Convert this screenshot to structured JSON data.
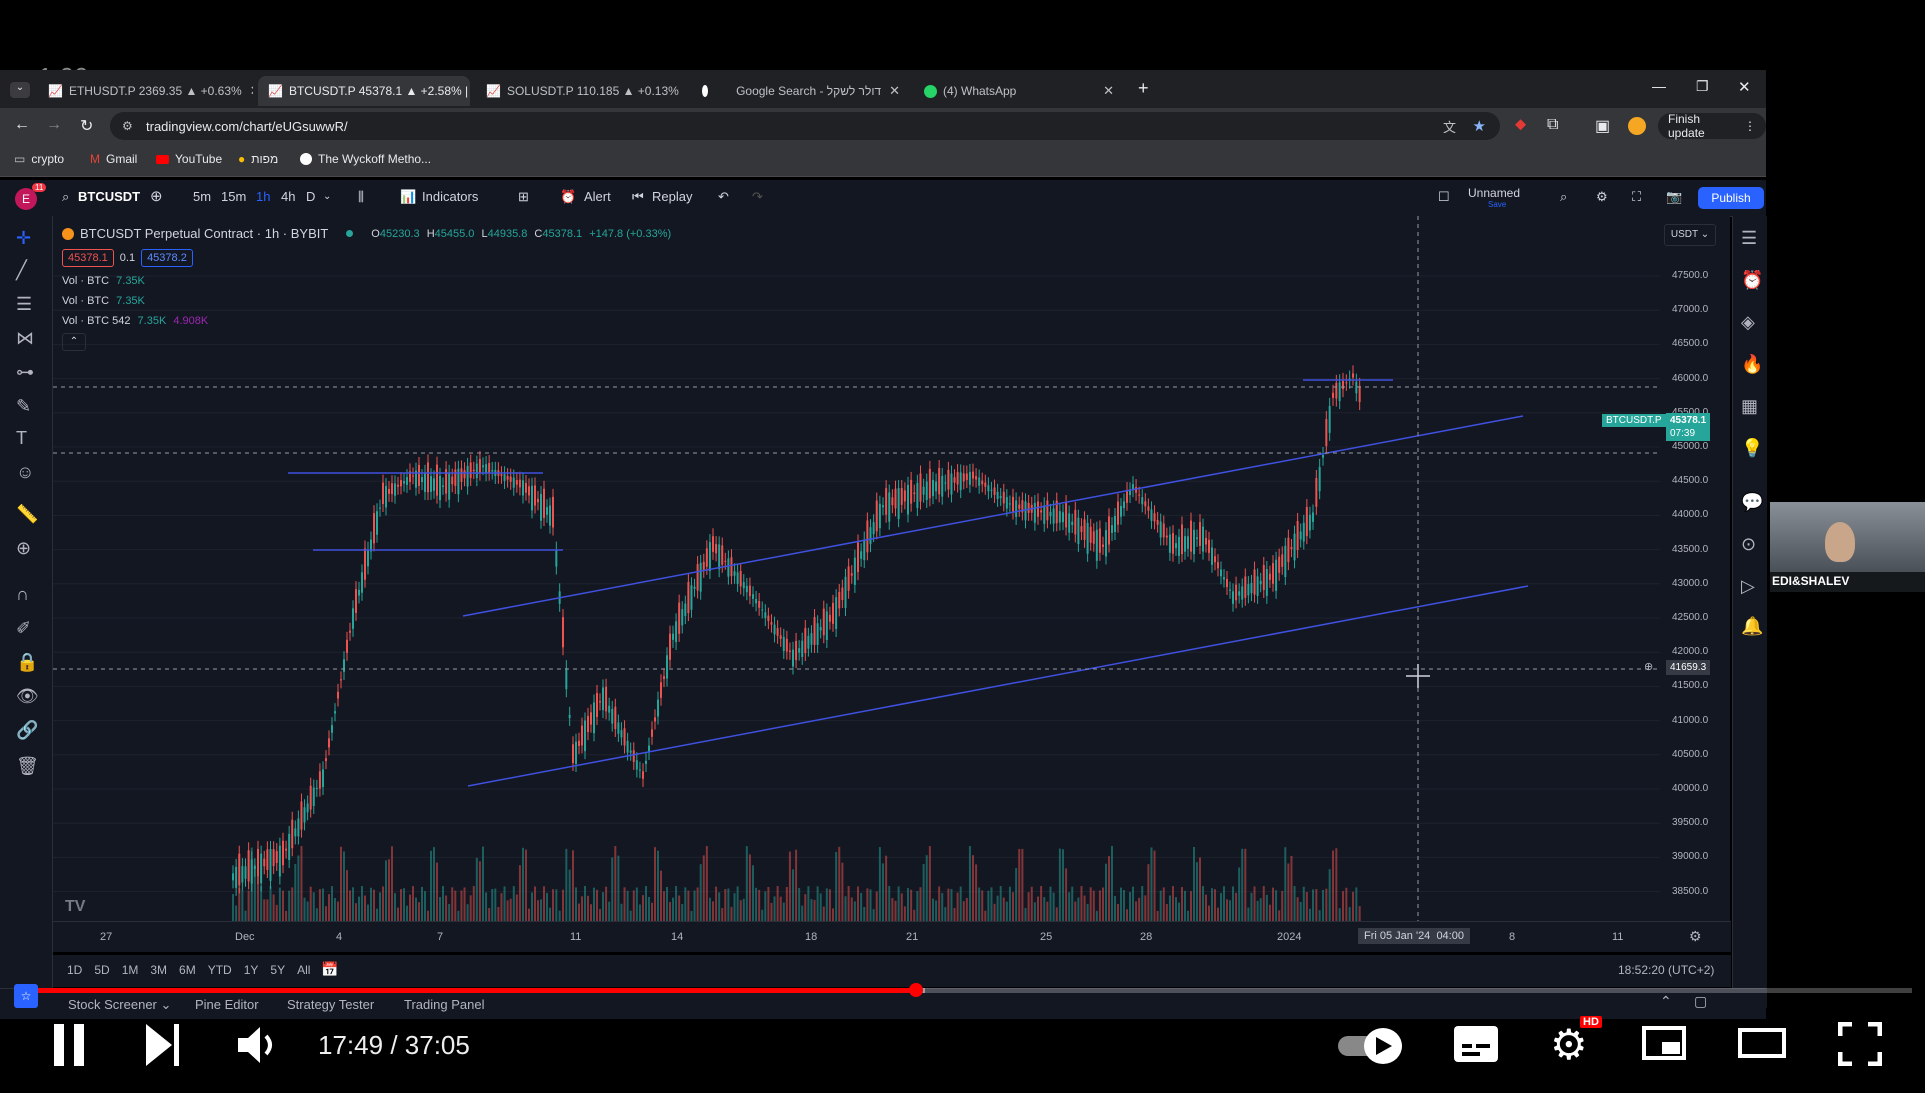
{
  "player": {
    "overlay_speed": "1.00",
    "current_time": "17:49",
    "time_separator": "/",
    "duration": "37:05",
    "progress": 0.475,
    "buffered": 0.48,
    "hd_badge": "HD"
  },
  "browser": {
    "tabs": [
      {
        "label": "ETHUSDT.P 2369.35 ▲ +0.63%",
        "active": false
      },
      {
        "label": "BTCUSDT.P 45378.1 ▲ +2.58% |",
        "active": true
      },
      {
        "label": "SOLUSDT.P 110.185 ▲ +0.13%",
        "active": false
      },
      {
        "label": "Google Search - דולר לשקל",
        "active": false
      },
      {
        "label": "(4) WhatsApp",
        "active": false
      }
    ],
    "url": "tradingview.com/chart/eUGsuwwR/",
    "finish_update": "Finish update",
    "bookmarks": [
      "crypto",
      "Gmail",
      "YouTube",
      "מפות",
      "The Wyckoff Metho..."
    ]
  },
  "tv_toolbar": {
    "avatar_letter": "E",
    "avatar_badge": "11",
    "symbol": "BTCUSDT",
    "intervals": [
      "5m",
      "15m",
      "1h",
      "4h",
      "D"
    ],
    "active_interval": "1h",
    "indicators": "Indicators",
    "alert": "Alert",
    "replay": "Replay",
    "layout_name": "Unnamed",
    "layout_sub": "Save",
    "publish": "Publish"
  },
  "legend": {
    "title": "BTCUSDT Perpetual Contract · 1h · BYBIT",
    "o": "O",
    "o_val": "45230.3",
    "h": "H",
    "h_val": "45455.0",
    "l": "L",
    "l_val": "44935.8",
    "c": "C",
    "c_val": "45378.1",
    "change": "+147.8 (+0.33%)",
    "sell": "45378.1",
    "spread": "0.1",
    "buy": "45378.2",
    "vol_rows": [
      {
        "label": "Vol · BTC",
        "v1": "7.35K",
        "v2": ""
      },
      {
        "label": "Vol · BTC",
        "v1": "7.35K",
        "v2": ""
      },
      {
        "label": "Vol · BTC 542",
        "v1": "7.35K",
        "v2": "4.908K"
      }
    ]
  },
  "price_axis": {
    "currency": "USDT",
    "ticks": [
      "47500.0",
      "47000.0",
      "46500.0",
      "46000.0",
      "45500.0",
      "45000.0",
      "44500.0",
      "44000.0",
      "43500.0",
      "43000.0",
      "42500.0",
      "42000.0",
      "41500.0",
      "41000.0",
      "40500.0",
      "40000.0",
      "39500.0",
      "39000.0",
      "38500.0"
    ],
    "symbol_tag": "BTCUSDT.P",
    "last_price": "45378.1",
    "countdown": "07:39",
    "crosshair_price": "41659.3"
  },
  "time_axis": {
    "ticks": [
      "27",
      "Dec",
      "4",
      "7",
      "11",
      "14",
      "18",
      "21",
      "25",
      "28",
      "2024",
      "8",
      "11"
    ],
    "crosshair_time": "Fri 05 Jan '24",
    "crosshair_clock": "04:00"
  },
  "ranges": [
    "1D",
    "5D",
    "1M",
    "3M",
    "6M",
    "YTD",
    "1Y",
    "5Y",
    "All"
  ],
  "clock": "18:52:20 (UTC+2)",
  "bottom_tabs": [
    "Stock Screener",
    "Pine Editor",
    "Strategy Tester",
    "Trading Panel"
  ],
  "webcam_label": "EDI&SHALEV",
  "colors": {
    "up": "#26a69a",
    "down": "#ef5350",
    "accent": "#2962ff",
    "line": "#3f51e0",
    "bg": "#131722"
  }
}
